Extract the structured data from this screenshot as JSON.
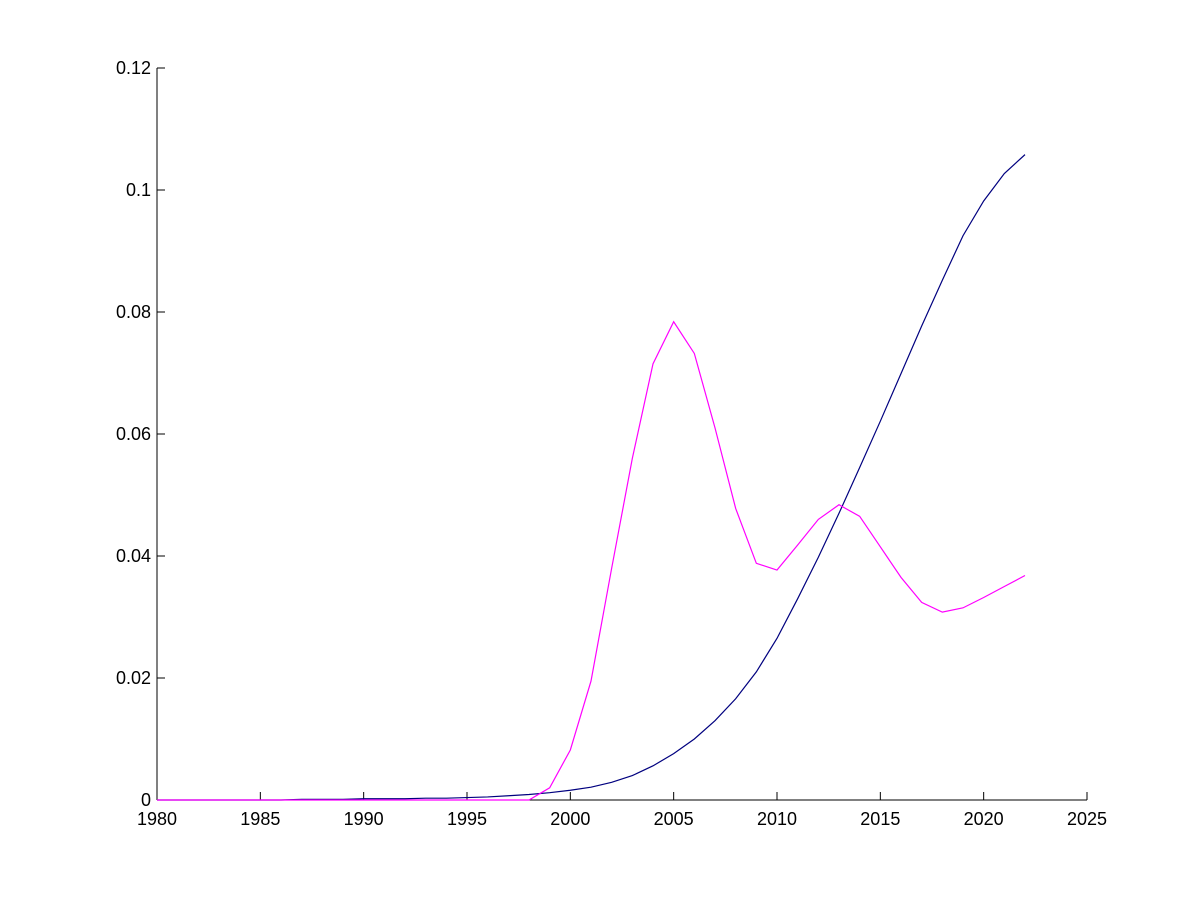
{
  "chart_data": {
    "type": "line",
    "title": "",
    "xlabel": "",
    "ylabel": "",
    "xlim": [
      1980,
      2025
    ],
    "ylim": [
      0,
      0.12
    ],
    "grid": false,
    "legend": "none",
    "xticks": [
      1980,
      1985,
      1990,
      1995,
      2000,
      2005,
      2010,
      2015,
      2020,
      2025
    ],
    "xtick_labels": [
      "1980",
      "1985",
      "1990",
      "1995",
      "2000",
      "2005",
      "2010",
      "2015",
      "2020",
      "2025"
    ],
    "yticks": [
      0,
      0.02,
      0.04,
      0.06,
      0.08,
      0.1,
      0.12
    ],
    "ytick_labels": [
      "0",
      "0.02",
      "0.04",
      "0.06",
      "0.08",
      "0.1",
      "0.12"
    ],
    "x": [
      1980,
      1981,
      1982,
      1983,
      1984,
      1985,
      1986,
      1987,
      1988,
      1989,
      1990,
      1991,
      1992,
      1993,
      1994,
      1995,
      1996,
      1997,
      1998,
      1999,
      2000,
      2001,
      2002,
      2003,
      2004,
      2005,
      2006,
      2007,
      2008,
      2009,
      2010,
      2011,
      2012,
      2013,
      2014,
      2015,
      2016,
      2017,
      2018,
      2019,
      2020,
      2021,
      2022
    ],
    "series": [
      {
        "color": "#00007f",
        "values": [
          0,
          0,
          0,
          0,
          0,
          0,
          0,
          0.0001,
          0.0001,
          0.0001,
          0.0002,
          0.0002,
          0.0002,
          0.0003,
          0.0003,
          0.0004,
          0.0005,
          0.0007,
          0.0009,
          0.0012,
          0.0016,
          0.0021,
          0.0029,
          0.004,
          0.0056,
          0.0076,
          0.01,
          0.013,
          0.0166,
          0.021,
          0.0265,
          0.033,
          0.0398,
          0.047,
          0.0545,
          0.0621,
          0.0699,
          0.0777,
          0.0852,
          0.0925,
          0.0982,
          0.1027,
          0.1058
        ]
      },
      {
        "color": "#ff00ff",
        "values": [
          0,
          0,
          0,
          0,
          0,
          0,
          0,
          0,
          0,
          0,
          0,
          0,
          0,
          0,
          0,
          0,
          0,
          0,
          0,
          0.002,
          0.0082,
          0.0195,
          0.038,
          0.056,
          0.0715,
          0.0784,
          0.0732,
          0.061,
          0.0478,
          0.0388,
          0.0377,
          0.0418,
          0.046,
          0.0484,
          0.0465,
          0.0415,
          0.0365,
          0.0324,
          0.0308,
          0.0315,
          0.0332,
          0.035,
          0.0368
        ]
      }
    ]
  }
}
